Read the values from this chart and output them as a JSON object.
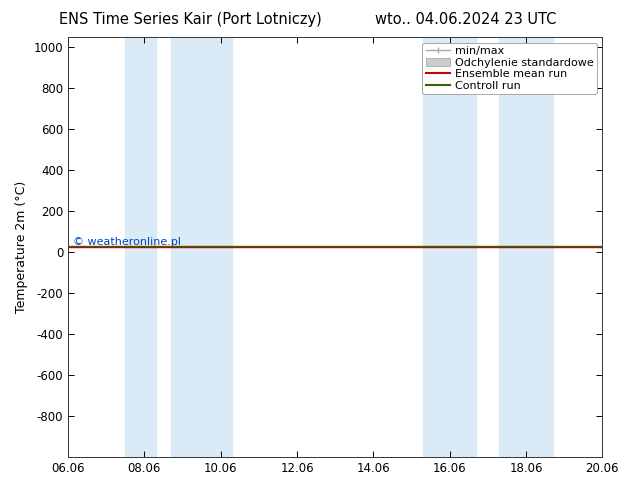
{
  "title_left": "ENS Time Series Kair (Port Lotniczy)",
  "title_right": "wto.. 04.06.2024 23 UTC",
  "ylabel": "Temperature 2m (°C)",
  "ylim_top": -1000,
  "ylim_bottom": 1050,
  "yticks": [
    -800,
    -600,
    -400,
    -200,
    0,
    200,
    400,
    600,
    800,
    1000
  ],
  "x_labels": [
    "06.06",
    "08.06",
    "10.06",
    "12.06",
    "14.06",
    "16.06",
    "18.06",
    "20.06"
  ],
  "x_positions": [
    0,
    2,
    4,
    6,
    8,
    10,
    12,
    14
  ],
  "x_min": 0,
  "x_max": 14,
  "shaded_regions": [
    [
      1.5,
      2.3
    ],
    [
      2.7,
      4.3
    ],
    [
      9.3,
      10.7
    ],
    [
      11.3,
      12.7
    ]
  ],
  "shaded_color": "#daeaf7",
  "flat_line_y": 30,
  "control_run_color": "#336600",
  "ensemble_mean_color": "#cc0000",
  "copyright_text": "© weatheronline.pl",
  "copyright_color": "#0044bb",
  "legend_labels": [
    "min/max",
    "Odchylenie standardowe",
    "Ensemble mean run",
    "Controll run"
  ],
  "legend_colors": [
    "#aaaaaa",
    "#cccccc",
    "#cc0000",
    "#336600"
  ],
  "bg_color": "#ffffff",
  "title_fontsize": 10.5,
  "axis_label_fontsize": 9,
  "tick_fontsize": 8.5,
  "legend_fontsize": 8
}
